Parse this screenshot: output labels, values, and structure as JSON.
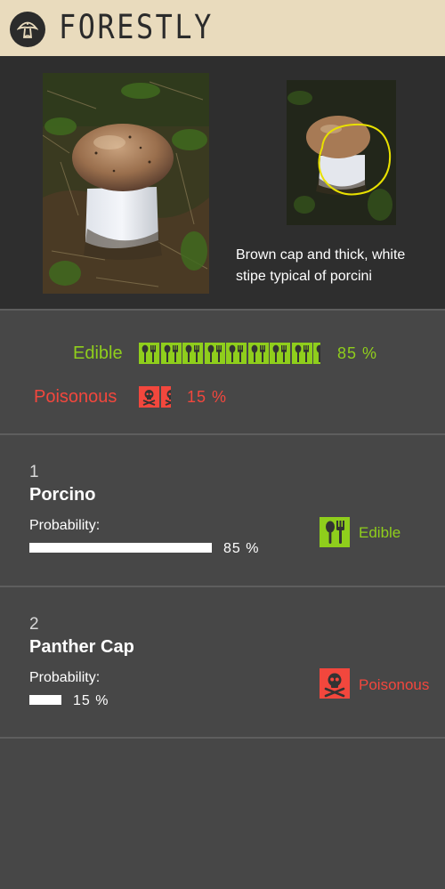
{
  "app": {
    "brand": "FORESTLY",
    "logo_icon": "mushroom-logo-icon"
  },
  "hero": {
    "photo_main": "porcini-mushroom-photo",
    "photo_crop": "porcini-highlighted-crop",
    "caption": "Brown cap and thick, white stipe typical of porcini"
  },
  "summary": {
    "edible": {
      "label": "Edible",
      "percent_text": "85 %",
      "value": 0.85,
      "icon": "fork-spoon-icon"
    },
    "poisonous": {
      "label": "Poisonous",
      "percent_text": "15 %",
      "value": 0.15,
      "icon": "skull-crossbones-icon"
    }
  },
  "results": [
    {
      "rank": "1",
      "name": "Porcino",
      "prob_label": "Probability:",
      "prob_text": "85 %",
      "prob_value": 0.85,
      "class_label": "Edible",
      "class_icon": "fork-spoon-icon"
    },
    {
      "rank": "2",
      "name": "Panther Cap",
      "prob_label": "Probability:",
      "prob_text": "15 %",
      "prob_value": 0.15,
      "class_label": "Poisonous",
      "class_icon": "skull-crossbones-icon"
    }
  ],
  "colors": {
    "header_bg": "#e9dbbd",
    "edible": "#8fce1c",
    "poisonous": "#f2473d",
    "background": "#474747"
  }
}
